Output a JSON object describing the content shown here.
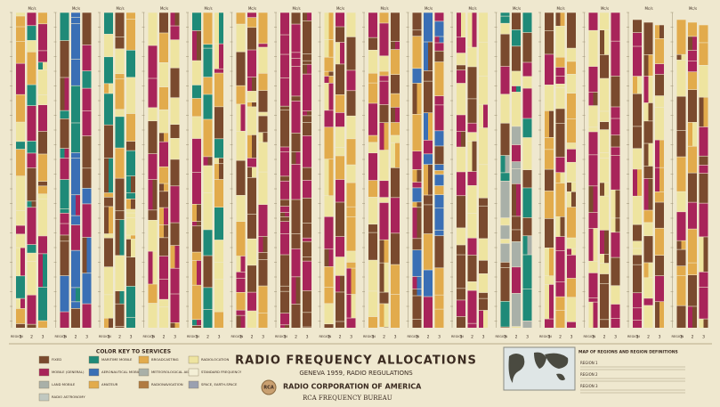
{
  "title": "RADIO FREQUENCY ALLOCATIONS",
  "subtitle": "GENEVA 1959, RADIO REGULATIONS",
  "organization": "RADIO CORPORATION OF AMERICA",
  "bureau": "RCA FREQUENCY BUREAU",
  "logo": "RCA",
  "unit": "Mc/s",
  "region_labels": [
    "REGION",
    "1",
    "2",
    "3"
  ],
  "color_key": {
    "title": "COLOR KEY TO SERVICES",
    "items": [
      "FIXED",
      "MARITIME MOBILE",
      "BROADCASTING",
      "RADIOLOCATION",
      "MOBILE (GENERAL)",
      "AERONAUTICAL MOBILE",
      "METEOROLOGICAL AIDS",
      "STANDARD FREQUENCY",
      "LAND MOBILE",
      "AMATEUR",
      "RADIONAVIGATION",
      "SPACE, EARTH-SPACE",
      "RADIO ASTRONOMY"
    ]
  },
  "map": {
    "title": "MAP OF REGIONS AND REGION DEFINITIONS",
    "regions": [
      "REGION 1",
      "REGION 2",
      "REGION 3"
    ]
  }
}
